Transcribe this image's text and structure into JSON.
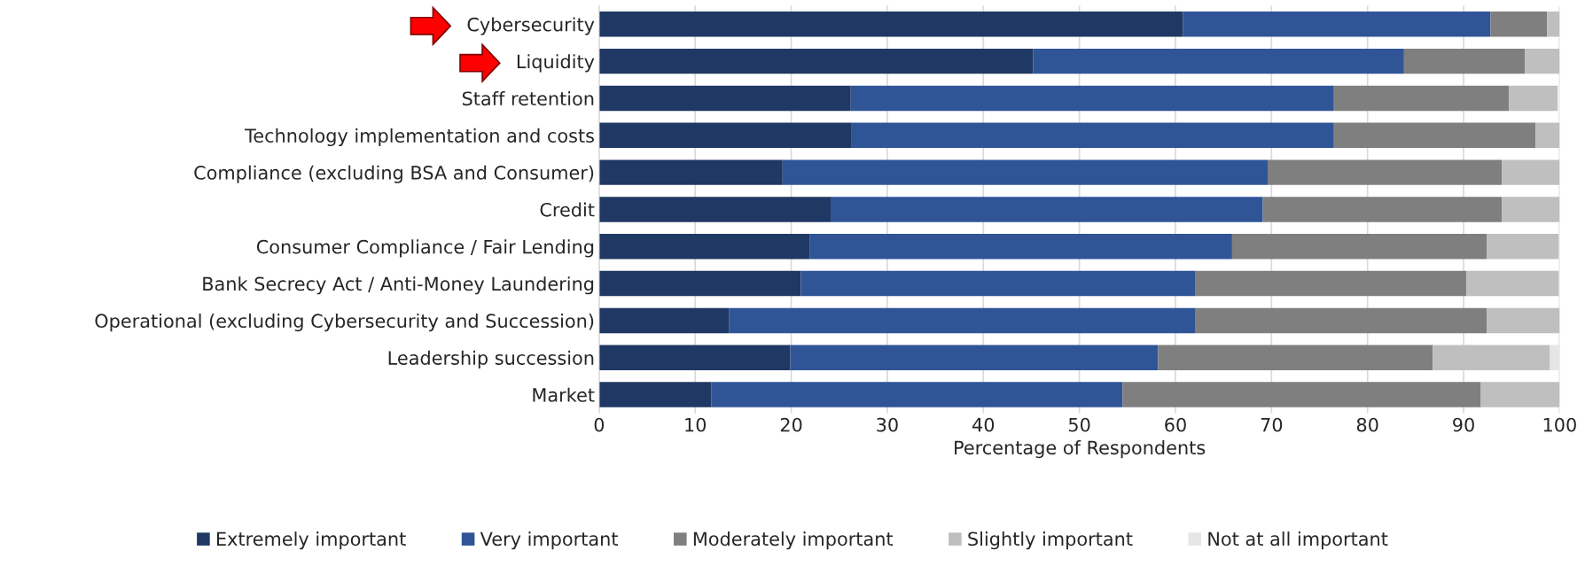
{
  "chart_data": {
    "type": "bar",
    "orientation": "horizontal",
    "stacked": true,
    "xlabel": "Percentage of Respondents",
    "categories": [
      "Cybersecurity",
      "Liquidity",
      "Staff retention",
      "Technology implementation and costs",
      "Compliance (excluding BSA and Consumer)",
      "Credit",
      "Consumer Compliance / Fair Lending",
      "Bank Secrecy Act / Anti-Money Laundering",
      "Operational (excluding Cybersecurity and Succession)",
      "Leadership succession",
      "Market"
    ],
    "series": [
      {
        "name": "Extremely important",
        "color": "#203864",
        "values": [
          60.8,
          45.2,
          26.2,
          26.3,
          19.1,
          24.1,
          21.9,
          21.0,
          13.5,
          19.9,
          11.7
        ]
      },
      {
        "name": "Very important",
        "color": "#2f5597",
        "values": [
          32.0,
          38.6,
          50.3,
          50.2,
          50.5,
          45.0,
          44.0,
          41.1,
          48.6,
          38.3,
          42.8
        ]
      },
      {
        "name": "Moderately important",
        "color": "#7f7f7f",
        "values": [
          5.9,
          12.6,
          18.2,
          21.0,
          24.4,
          24.9,
          26.5,
          28.2,
          30.3,
          28.6,
          37.3
        ]
      },
      {
        "name": "Slightly important",
        "color": "#bfbfbf",
        "values": [
          1.3,
          3.6,
          5.1,
          2.5,
          6.0,
          6.0,
          7.5,
          9.6,
          7.6,
          12.2,
          8.2
        ]
      },
      {
        "name": "Not at all important",
        "color": "#e7e6e6",
        "values": [
          0,
          0,
          0,
          0,
          0,
          0,
          0,
          0,
          0,
          1.0,
          0
        ]
      }
    ],
    "xlim": [
      0,
      100
    ],
    "xticks": [
      0,
      10,
      20,
      30,
      40,
      50,
      60,
      70,
      80,
      90,
      100
    ],
    "grid": "x",
    "legend": "bottom"
  }
}
